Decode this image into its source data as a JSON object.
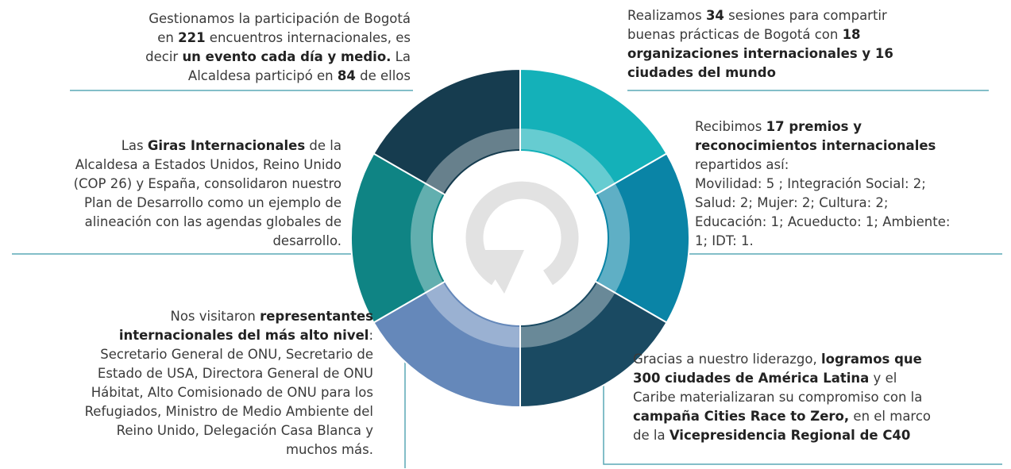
{
  "blocks": [
    {
      "lines": [
        [
          {
            "text": "Gestionamos la participación de Bogotá"
          }
        ],
        [
          {
            "text": "en "
          },
          {
            "text": "221",
            "bold": true
          },
          {
            "text": " encuentros internacionales, es"
          }
        ],
        [
          {
            "text": "decir "
          },
          {
            "text": "un evento cada día y medio.",
            "bold": true
          },
          {
            "text": " La"
          }
        ],
        [
          {
            "text": "Alcaldesa participó en "
          },
          {
            "text": "84",
            "bold": true
          },
          {
            "text": " de ellos"
          }
        ]
      ]
    },
    {
      "lines": [
        [
          {
            "text": "Realizamos "
          },
          {
            "text": "34",
            "bold": true
          },
          {
            "text": " sesiones para compartir"
          }
        ],
        [
          {
            "text": "buenas prácticas de Bogotá con "
          },
          {
            "text": "18",
            "bold": true
          }
        ],
        [
          {
            "text": "organizaciones internacionales y 16",
            "bold": true
          }
        ],
        [
          {
            "text": "ciudades del mundo",
            "bold": true
          }
        ]
      ]
    },
    {
      "lines": [
        [
          {
            "text": "Recibimos "
          },
          {
            "text": "17 premios y",
            "bold": true
          }
        ],
        [
          {
            "text": "reconocimientos internacionales",
            "bold": true
          }
        ],
        [
          {
            "text": "repartidos así:"
          }
        ],
        [
          {
            "text": "Movilidad: 5 ; Integración Social: 2;"
          }
        ],
        [
          {
            "text": "Salud: 2; Mujer: 2; Cultura: 2;"
          }
        ],
        [
          {
            "text": "Educación: 1; Acueducto: 1; Ambiente:"
          }
        ],
        [
          {
            "text": "1; IDT: 1."
          }
        ]
      ]
    },
    {
      "lines": [
        [
          {
            "text": "Las "
          },
          {
            "text": "Giras Internacionales",
            "bold": true
          },
          {
            "text": " de la"
          }
        ],
        [
          {
            "text": "Alcaldesa a Estados Unidos, Reino Unido"
          }
        ],
        [
          {
            "text": "(COP 26) y España, consolidaron nuestro"
          }
        ],
        [
          {
            "text": "Plan de Desarrollo como un ejemplo de"
          }
        ],
        [
          {
            "text": "alineación con las agendas globales de"
          }
        ],
        [
          {
            "text": "desarrollo."
          }
        ]
      ]
    },
    {
      "lines": [
        [
          {
            "text": "Nos visitaron "
          },
          {
            "text": "representantes",
            "bold": true
          }
        ],
        [
          {
            "text": "internacionales del más alto nivel",
            "bold": true
          },
          {
            "text": ":"
          }
        ],
        [
          {
            "text": "Secretario General de ONU, Secretario de"
          }
        ],
        [
          {
            "text": "Estado de USA, Directora General de ONU"
          }
        ],
        [
          {
            "text": "Hábitat, Alto Comisionado de ONU para los"
          }
        ],
        [
          {
            "text": "Refugiados, Ministro de Medio Ambiente del"
          }
        ],
        [
          {
            "text": "Reino Unido, Delegación Casa Blanca y"
          }
        ],
        [
          {
            "text": "muchos más."
          }
        ]
      ]
    },
    {
      "lines": [
        [
          {
            "text": "Gracias a nuestro liderazgo, "
          },
          {
            "text": "logramos que",
            "bold": true
          }
        ],
        [
          {
            "text": "300 ciudades de América Latina",
            "bold": true
          },
          {
            "text": " y el"
          }
        ],
        [
          {
            "text": "Caribe materializaran su compromiso con la"
          }
        ],
        [
          {
            "text": "campaña Cities Race to Zero,",
            "bold": true
          },
          {
            "text": " en el marco"
          }
        ],
        [
          {
            "text": "de la "
          },
          {
            "text": "Vicepresidencia Regional de C40",
            "bold": true
          }
        ]
      ]
    }
  ]
}
